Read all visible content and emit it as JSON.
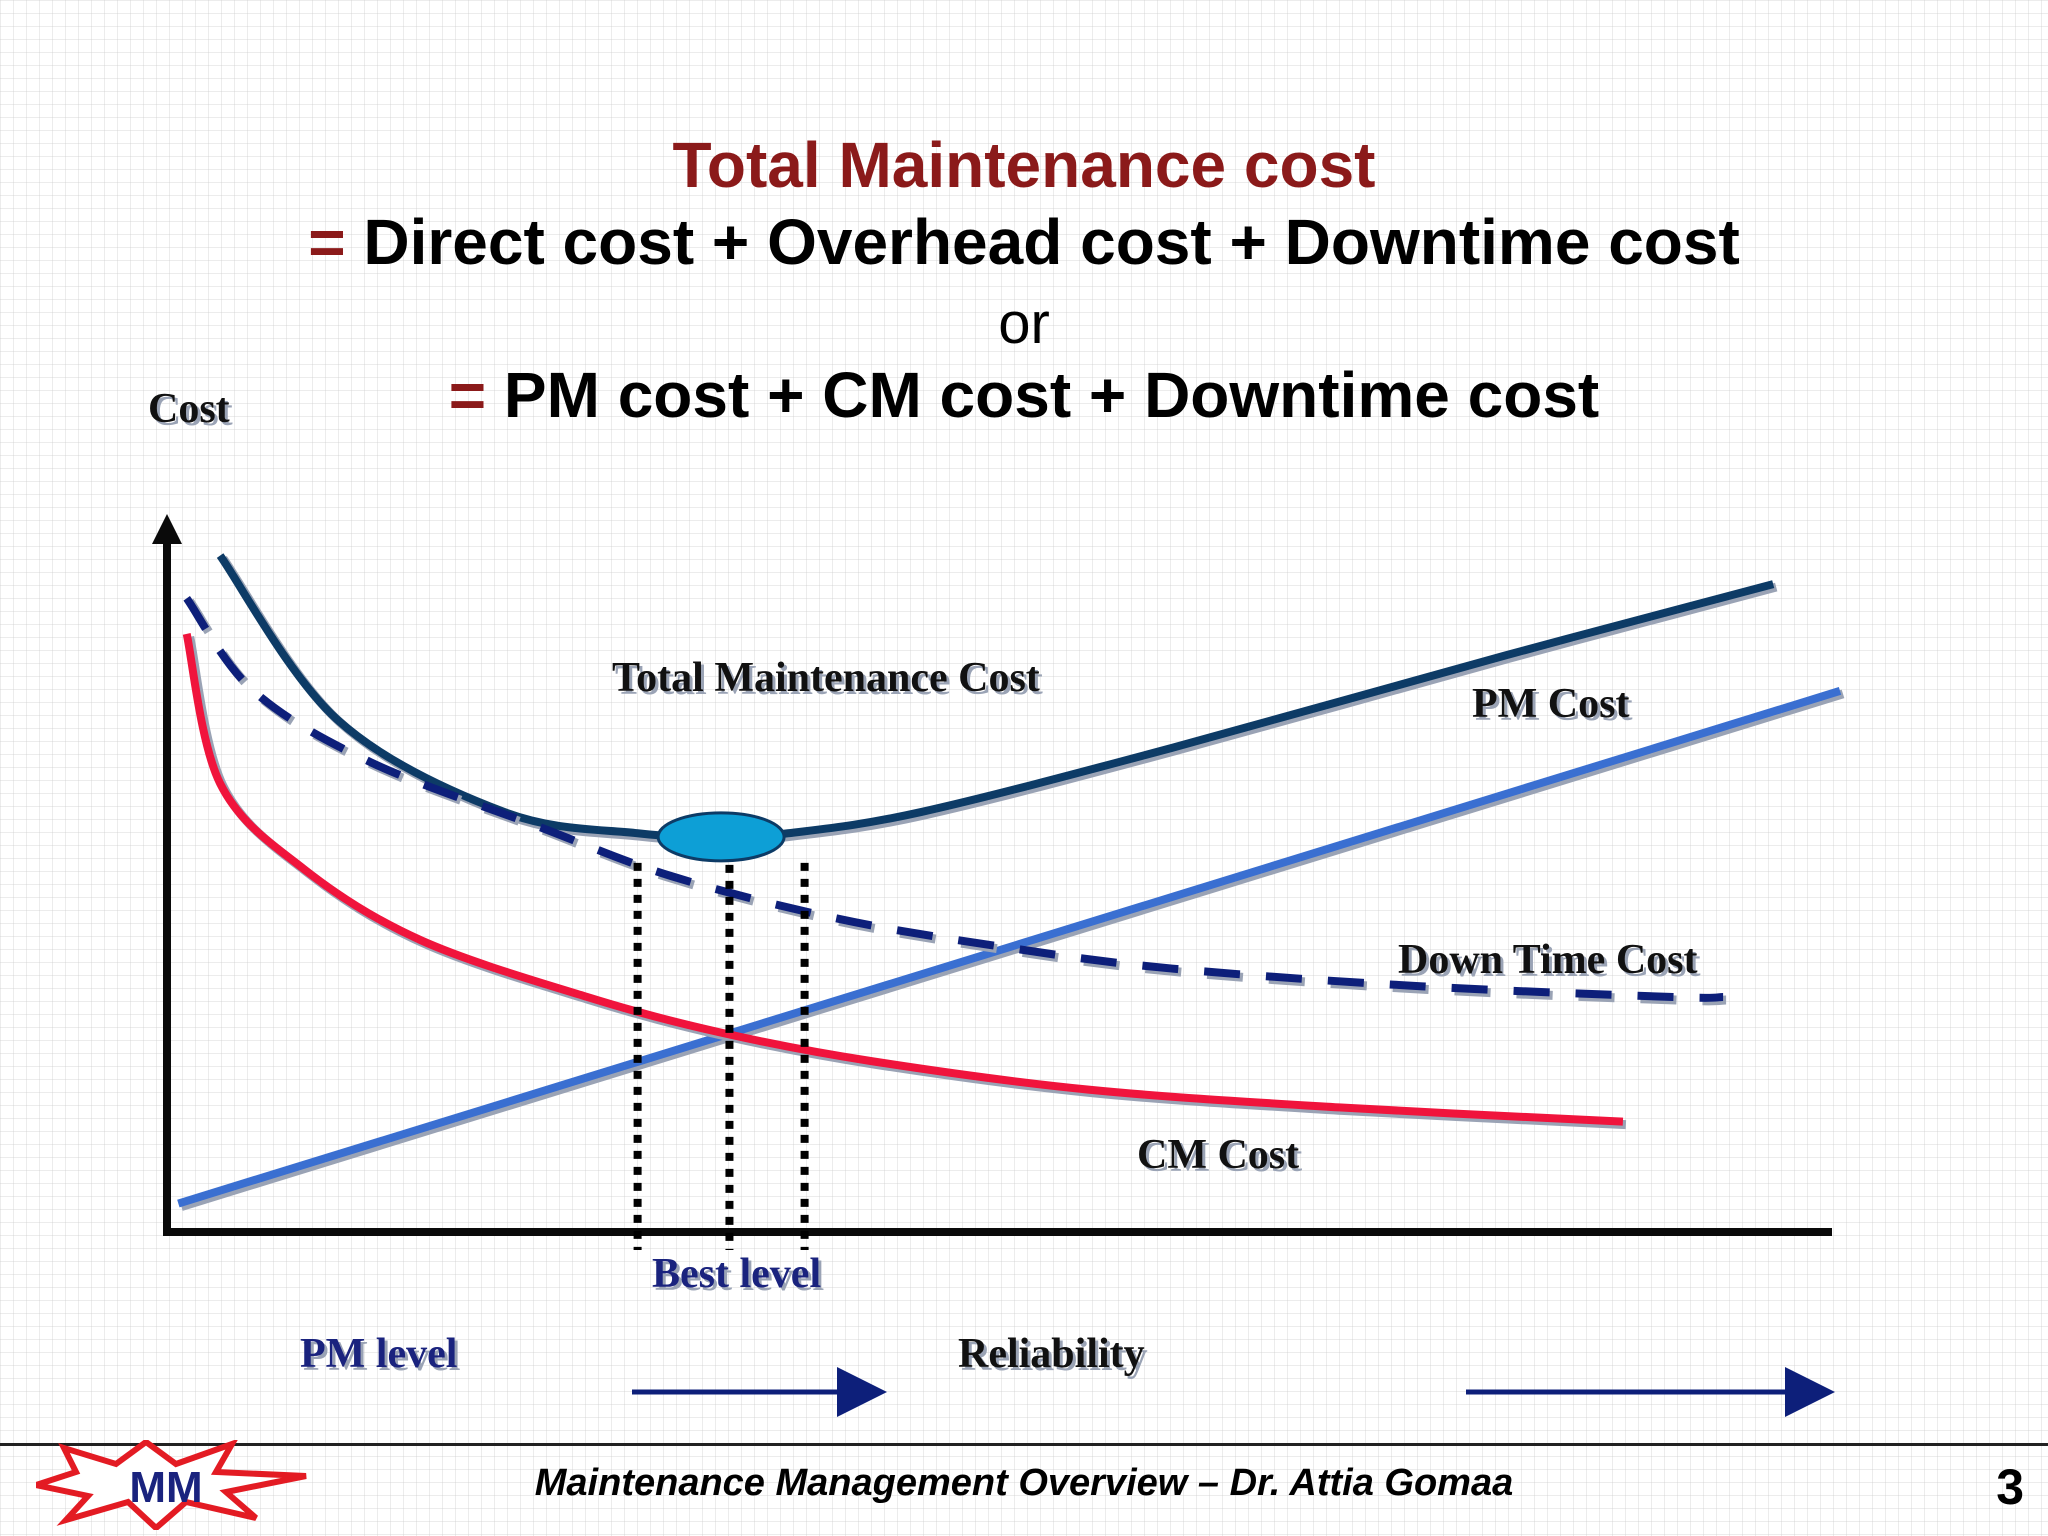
{
  "title": {
    "line1": "Total Maintenance cost",
    "line2_eq": "=",
    "line2": " Direct cost + Overhead cost + Downtime cost",
    "line3": "or",
    "line4_eq": "=",
    "line4": "  PM cost + CM cost + Downtime cost"
  },
  "chart_data": {
    "type": "line",
    "title": "",
    "xlabel": "PM level",
    "ylabel": "Cost",
    "x_axis_secondary_label": "Reliability",
    "optimum_label": "Best level",
    "xlim": [
      0,
      100
    ],
    "ylim": [
      0,
      100
    ],
    "series": [
      {
        "name": "Total Maintenance Cost",
        "style": "solid",
        "color": "#0d3b66",
        "x": [
          3,
          10,
          20,
          28,
          33,
          37,
          45,
          60,
          80,
          96
        ],
        "y": [
          95,
          72,
          59,
          56,
          55.5,
          56,
          59,
          68,
          81,
          91
        ]
      },
      {
        "name": "PM Cost",
        "style": "solid",
        "color": "#3a6fd1",
        "x": [
          0.5,
          100
        ],
        "y": [
          4,
          76
        ]
      },
      {
        "name": "Down Time Cost",
        "style": "dashed",
        "color": "#0d1f7a",
        "x": [
          1,
          5,
          12,
          22,
          30,
          40,
          50,
          60,
          75,
          90,
          93
        ],
        "y": [
          89,
          76,
          66,
          57,
          50,
          44,
          40,
          37,
          34.5,
          33,
          33
        ]
      },
      {
        "name": "CM Cost",
        "style": "solid",
        "color": "#f0143c",
        "x": [
          1,
          3,
          8,
          15,
          25,
          33,
          42,
          55,
          70,
          87
        ],
        "y": [
          84,
          63,
          51,
          41,
          33,
          28,
          24,
          20,
          17.5,
          15.5
        ]
      }
    ],
    "optimum_x": 33,
    "best_range_x": [
      28,
      38
    ],
    "labels": {
      "total": "Total Maintenance Cost",
      "pm": "PM Cost",
      "downtime": "Down Time Cost",
      "cm": "CM Cost"
    }
  },
  "footer": {
    "logo_text": "MM",
    "text": "Maintenance Management Overview – Dr. Attia Gomaa",
    "page": "3"
  }
}
